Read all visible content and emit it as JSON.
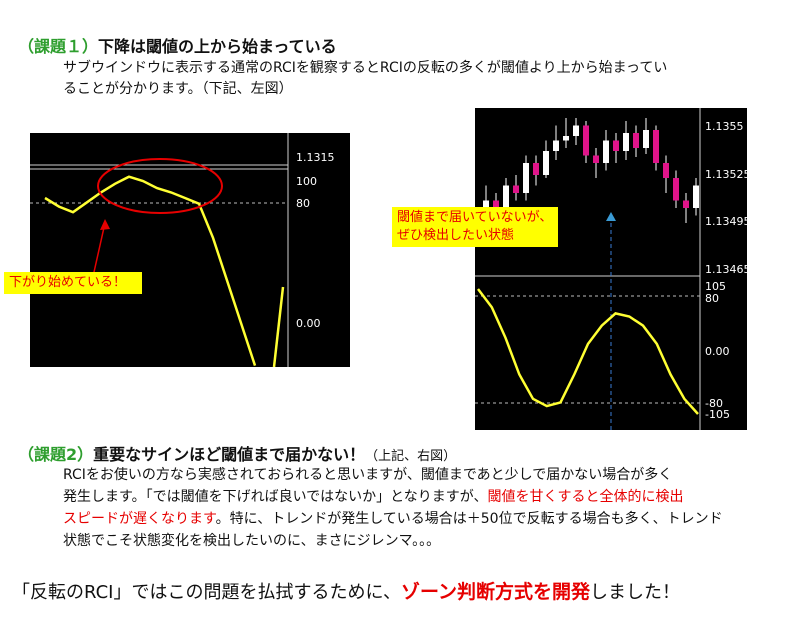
{
  "section1": {
    "prefix": "（課題１）",
    "title": "下降は閾値の上から始まっている",
    "body_line1": "サブウインドウに表示する通常のRCIを観察するとRCIの反転の多くが閾値より上から始まってい",
    "body_line2": "ることが分かります。（下記、左図）"
  },
  "left_chart": {
    "labels": {
      "price": "1.1315",
      "level100": "100",
      "level80": "80",
      "level0": "0.00"
    },
    "note": "下がり始めている！"
  },
  "right_chart": {
    "price_labels": [
      "1.1355",
      "1.13525",
      "1.13495",
      "1.13465"
    ],
    "rci_labels": {
      "top": "105",
      "l80": "80",
      "zero": "0.00",
      "m80": "-80",
      "bottom": "-105"
    },
    "note_line1": "閾値まで届いていないが、",
    "note_line2": "ぜひ検出したい状態"
  },
  "section2": {
    "prefix": "（課題2）",
    "title": "重要なサインほど閾値まで届かない！",
    "ref": "（上記、右図）",
    "body_line1": "RCIをお使いの方なら実感されておられると思いますが、閾値まであと少しで届かない場合が多く",
    "body_line2a": "発生します。「では閾値を下げれば良いではないか」となりますが、",
    "body_line2b": "閾値を甘くすると全体的に検出",
    "body_line3a": "スピードが遅くなります",
    "body_line3b": "。特に、トレンドが発生している場合は＋50位で反転する場合も多く、トレンド",
    "body_line4": "状態でこそ状態変化を検出したいのに、まさにジレンマ。。。"
  },
  "conclusion": {
    "part1": "「反転のRCI」ではこの問題を払拭するために、",
    "part2": "ゾーン判断方式を開発",
    "part3": "しました！"
  },
  "colors": {
    "accent_red": "#e60000",
    "heading_green": "#2e9e2e",
    "rci_line": "#ffff33",
    "bull": "#ffffff",
    "bear": "#e0148a"
  },
  "rci_left_series": [
    88,
    82,
    78,
    85,
    92,
    98,
    103,
    100,
    95,
    92,
    88,
    84,
    60,
    30,
    0,
    -30
  ],
  "rci_right_series": [
    100,
    70,
    20,
    -40,
    -80,
    -92,
    -86,
    -40,
    10,
    40,
    60,
    55,
    40,
    10,
    -40,
    -80,
    -105
  ],
  "candles": [
    {
      "o": 30,
      "c": 45,
      "h": 55,
      "l": 20
    },
    {
      "o": 45,
      "c": 35,
      "h": 50,
      "l": 30
    },
    {
      "o": 35,
      "c": 55,
      "h": 60,
      "l": 30
    },
    {
      "o": 55,
      "c": 50,
      "h": 62,
      "l": 45
    },
    {
      "o": 50,
      "c": 70,
      "h": 75,
      "l": 45
    },
    {
      "o": 70,
      "c": 62,
      "h": 75,
      "l": 55
    },
    {
      "o": 62,
      "c": 78,
      "h": 85,
      "l": 60
    },
    {
      "o": 78,
      "c": 85,
      "h": 95,
      "l": 72
    },
    {
      "o": 85,
      "c": 88,
      "h": 100,
      "l": 80
    },
    {
      "o": 88,
      "c": 95,
      "h": 100,
      "l": 82
    },
    {
      "o": 95,
      "c": 75,
      "h": 98,
      "l": 70
    },
    {
      "o": 75,
      "c": 70,
      "h": 80,
      "l": 60
    },
    {
      "o": 70,
      "c": 85,
      "h": 92,
      "l": 65
    },
    {
      "o": 85,
      "c": 78,
      "h": 90,
      "l": 70
    },
    {
      "o": 78,
      "c": 90,
      "h": 98,
      "l": 72
    },
    {
      "o": 90,
      "c": 80,
      "h": 95,
      "l": 74
    },
    {
      "o": 80,
      "c": 92,
      "h": 100,
      "l": 76
    },
    {
      "o": 92,
      "c": 70,
      "h": 95,
      "l": 65
    },
    {
      "o": 70,
      "c": 60,
      "h": 75,
      "l": 50
    },
    {
      "o": 60,
      "c": 45,
      "h": 65,
      "l": 40
    },
    {
      "o": 45,
      "c": 40,
      "h": 50,
      "l": 30
    },
    {
      "o": 40,
      "c": 55,
      "h": 60,
      "l": 35
    }
  ]
}
